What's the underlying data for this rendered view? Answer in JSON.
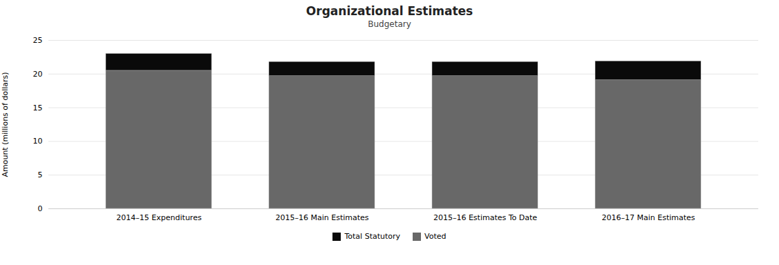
{
  "chart_data": {
    "type": "bar",
    "stacked": true,
    "title": "Organizational Estimates",
    "subtitle": "Budgetary",
    "ylabel": "Amount (millions of dollars)",
    "categories": [
      "2014–15 Expenditures",
      "2015–16 Main Estimates",
      "2015–16 Estimates To Date",
      "2016–17 Main Estimates"
    ],
    "series": [
      {
        "name": "Voted",
        "color": "#686868",
        "values": [
          20.5,
          19.7,
          19.7,
          19.1
        ]
      },
      {
        "name": "Total Statutory",
        "color": "#0a0a0a",
        "values": [
          2.5,
          2.1,
          2.1,
          2.8
        ]
      }
    ],
    "ylim": [
      0,
      25
    ],
    "yticks": [
      0,
      5,
      10,
      15,
      20,
      25
    ],
    "grid": true,
    "legend": "bottom"
  }
}
